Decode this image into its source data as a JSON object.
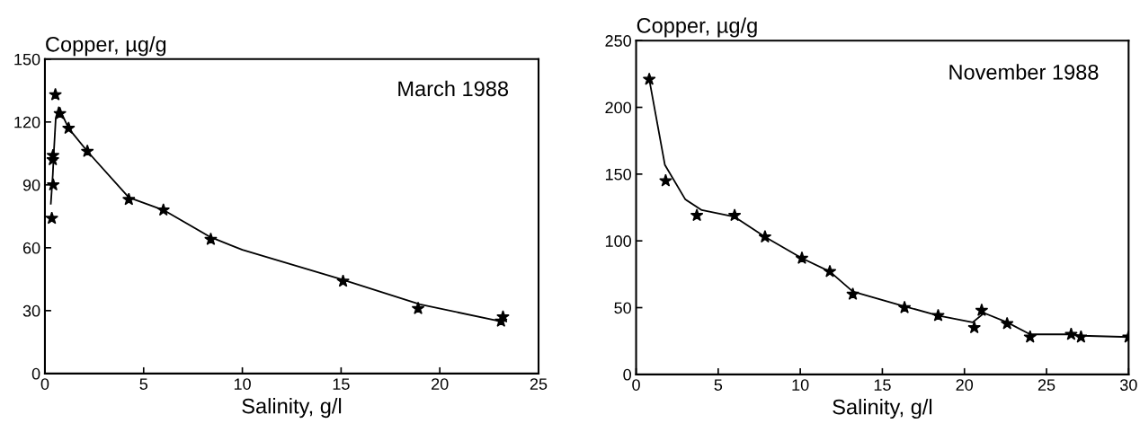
{
  "chart_data": [
    {
      "type": "scatter",
      "title": "March 1988",
      "xlabel": "Salinity, g/l",
      "ylabel": "Copper, µg/g",
      "xlim": [
        0,
        25
      ],
      "ylim": [
        0,
        150
      ],
      "xticks": [
        0,
        5,
        10,
        15,
        20,
        25
      ],
      "yticks": [
        0,
        30,
        60,
        90,
        120,
        150
      ],
      "grid": false,
      "legend": false,
      "marker": "star",
      "series": [
        {
          "color": "#000000",
          "x": [
            0.35,
            0.42,
            0.4,
            0.41,
            0.53,
            0.76,
            1.2,
            2.15,
            4.25,
            6.0,
            8.4,
            15.1,
            18.9,
            23.1,
            23.2
          ],
          "values": [
            74,
            90,
            102,
            104,
            133,
            124,
            117,
            106,
            83,
            78,
            64,
            44,
            31,
            25,
            27
          ]
        },
        {
          "type": "line",
          "marker": "none",
          "line_style": "solid",
          "color": "#000000",
          "x": [
            0.3,
            0.4,
            0.45,
            0.55,
            0.7,
            1.2,
            2.15,
            4.25,
            6.0,
            8.4,
            10,
            15,
            19,
            23
          ],
          "values": [
            81,
            95,
            105,
            122,
            127,
            117,
            106,
            84,
            78,
            65,
            59,
            45,
            33,
            25
          ]
        }
      ]
    },
    {
      "type": "scatter",
      "title": "November 1988",
      "xlabel": "Salinity, g/l",
      "ylabel": "Copper, µg/g",
      "xlim": [
        0,
        30
      ],
      "ylim": [
        0,
        250
      ],
      "xticks": [
        0,
        5,
        10,
        15,
        20,
        25,
        30
      ],
      "yticks": [
        0,
        50,
        100,
        150,
        200,
        250
      ],
      "grid": false,
      "legend": false,
      "marker": "star",
      "series": [
        {
          "color": "#000000",
          "x": [
            0.8,
            1.8,
            3.7,
            6.0,
            7.85,
            10.1,
            11.8,
            13.2,
            16.35,
            18.4,
            20.6,
            21.05,
            22.6,
            24.0,
            26.5,
            27.1,
            30.0
          ],
          "values": [
            221,
            145,
            119,
            119,
            103,
            87,
            77,
            60,
            50,
            44,
            35,
            48,
            38,
            28,
            30,
            28,
            28
          ]
        },
        {
          "type": "line",
          "marker": "none",
          "line_style": "solid",
          "color": "#000000",
          "x": [
            0.8,
            1.75,
            3,
            4,
            6,
            7.85,
            10.1,
            11.8,
            13.2,
            16.35,
            18.4,
            20.5,
            21.2,
            22.6,
            24,
            26.5,
            27.1,
            30
          ],
          "values": [
            221,
            157,
            131,
            123,
            118,
            103,
            87,
            77,
            62,
            51,
            44,
            39,
            46,
            39,
            30,
            30,
            29,
            28
          ]
        }
      ]
    }
  ]
}
